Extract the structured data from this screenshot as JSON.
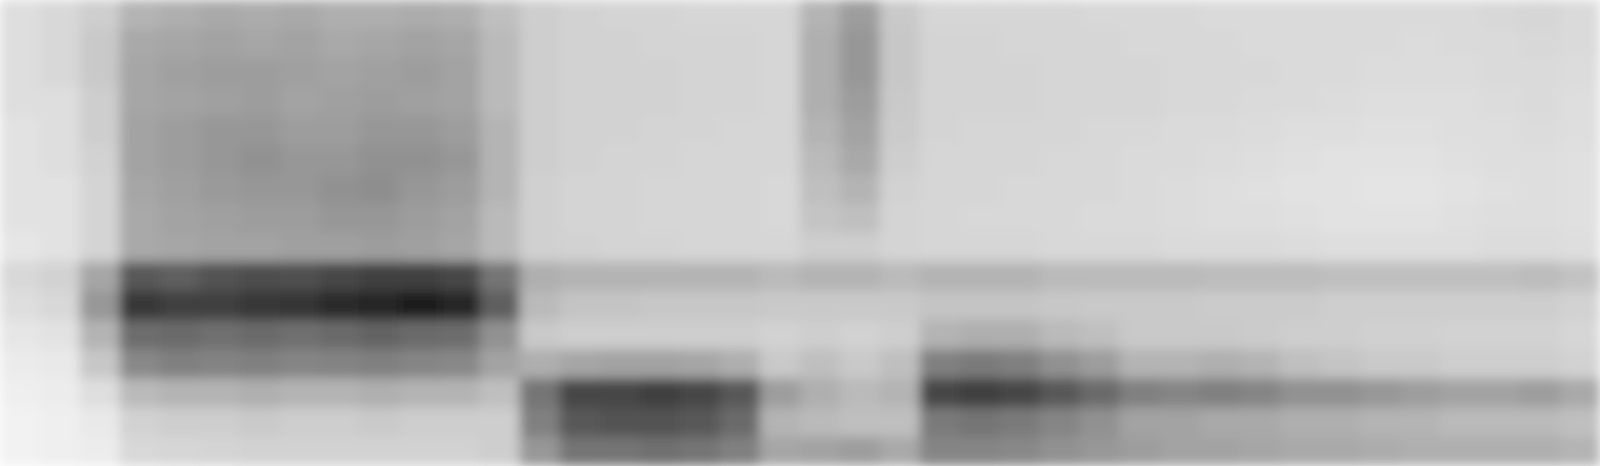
{
  "chart_data": {
    "type": "heatmap",
    "tick_labels": false,
    "zlim": [
      0,
      1
    ],
    "cells": [
      [
        0.22,
        0.22,
        0.22,
        0.22,
        0.2,
        0.2,
        0.2,
        0.2,
        0.18,
        0.25,
        0.22,
        0.18,
        0.15,
        0.12,
        0.1,
        0.1
      ],
      [
        0.25,
        0.25,
        0.25,
        0.22,
        0.22,
        0.22,
        0.2,
        0.2,
        0.2,
        0.28,
        0.25,
        0.2,
        0.16,
        0.14,
        0.12,
        0.12
      ],
      [
        0.3,
        0.32,
        0.32,
        0.3,
        0.3,
        0.28,
        0.27,
        0.27,
        0.27,
        0.45,
        0.5,
        0.4,
        0.33,
        0.22,
        0.16,
        0.14
      ],
      [
        0.4,
        0.44,
        0.45,
        0.45,
        0.46,
        0.46,
        0.45,
        0.44,
        0.44,
        0.72,
        0.82,
        0.65,
        0.55,
        0.38,
        0.28,
        0.25
      ],
      [
        0.42,
        0.45,
        0.47,
        0.46,
        0.48,
        0.48,
        0.47,
        0.46,
        0.45,
        0.7,
        0.8,
        0.66,
        0.58,
        0.4,
        0.3,
        0.26
      ],
      [
        0.44,
        0.46,
        0.48,
        0.47,
        0.5,
        0.5,
        0.49,
        0.47,
        0.46,
        0.74,
        0.8,
        0.64,
        0.57,
        0.4,
        0.3,
        0.27
      ],
      [
        0.43,
        0.45,
        0.48,
        0.48,
        0.5,
        0.52,
        0.5,
        0.48,
        0.46,
        0.76,
        0.82,
        0.66,
        0.58,
        0.42,
        0.32,
        0.28
      ],
      [
        0.44,
        0.46,
        0.47,
        0.46,
        0.48,
        0.5,
        0.5,
        0.48,
        0.47,
        0.75,
        0.83,
        0.64,
        0.56,
        0.4,
        0.3,
        0.28
      ],
      [
        0.42,
        0.44,
        0.46,
        0.47,
        0.48,
        0.5,
        0.52,
        0.5,
        0.47,
        0.78,
        0.86,
        0.66,
        0.57,
        0.4,
        0.3,
        0.28
      ],
      [
        0.42,
        0.45,
        0.47,
        0.48,
        0.5,
        0.52,
        0.53,
        0.5,
        0.48,
        0.8,
        0.88,
        0.68,
        0.58,
        0.42,
        0.32,
        0.28
      ],
      [
        0.43,
        0.46,
        0.48,
        0.47,
        0.5,
        0.52,
        0.5,
        0.48,
        0.47,
        0.8,
        0.9,
        0.66,
        0.56,
        0.4,
        0.3,
        0.28
      ],
      [
        0.42,
        0.45,
        0.46,
        0.46,
        0.48,
        0.5,
        0.48,
        0.46,
        0.45,
        0.78,
        0.88,
        0.65,
        0.55,
        0.4,
        0.3,
        0.28
      ],
      [
        0.36,
        0.38,
        0.38,
        0.38,
        0.4,
        0.4,
        0.4,
        0.38,
        0.38,
        0.62,
        0.7,
        0.52,
        0.46,
        0.36,
        0.3,
        0.3
      ],
      [
        0.3,
        0.3,
        0.3,
        0.3,
        0.3,
        0.3,
        0.29,
        0.29,
        0.29,
        0.42,
        0.38,
        0.32,
        0.42,
        0.62,
        0.58,
        0.5
      ],
      [
        0.28,
        0.28,
        0.28,
        0.28,
        0.28,
        0.28,
        0.27,
        0.27,
        0.28,
        0.4,
        0.34,
        0.3,
        0.45,
        0.78,
        0.72,
        0.62
      ],
      [
        0.27,
        0.28,
        0.28,
        0.28,
        0.28,
        0.27,
        0.27,
        0.27,
        0.27,
        0.4,
        0.34,
        0.3,
        0.46,
        0.78,
        0.74,
        0.62
      ],
      [
        0.27,
        0.27,
        0.28,
        0.28,
        0.27,
        0.27,
        0.26,
        0.26,
        0.27,
        0.4,
        0.33,
        0.3,
        0.46,
        0.8,
        0.74,
        0.64
      ],
      [
        0.26,
        0.27,
        0.27,
        0.27,
        0.27,
        0.26,
        0.26,
        0.26,
        0.26,
        0.4,
        0.33,
        0.3,
        0.45,
        0.78,
        0.72,
        0.62
      ],
      [
        0.26,
        0.27,
        0.27,
        0.27,
        0.26,
        0.26,
        0.26,
        0.26,
        0.26,
        0.4,
        0.33,
        0.3,
        0.42,
        0.72,
        0.66,
        0.58
      ],
      [
        0.26,
        0.26,
        0.26,
        0.26,
        0.26,
        0.26,
        0.25,
        0.25,
        0.26,
        0.38,
        0.32,
        0.28,
        0.32,
        0.48,
        0.4,
        0.45
      ],
      [
        0.4,
        0.42,
        0.42,
        0.42,
        0.4,
        0.38,
        0.36,
        0.34,
        0.3,
        0.4,
        0.32,
        0.3,
        0.36,
        0.42,
        0.38,
        0.46
      ],
      [
        0.48,
        0.5,
        0.5,
        0.48,
        0.46,
        0.44,
        0.4,
        0.36,
        0.3,
        0.4,
        0.32,
        0.28,
        0.32,
        0.38,
        0.36,
        0.48
      ],
      [
        0.32,
        0.33,
        0.33,
        0.32,
        0.31,
        0.3,
        0.28,
        0.27,
        0.27,
        0.38,
        0.32,
        0.3,
        0.36,
        0.4,
        0.36,
        0.44
      ],
      [
        0.26,
        0.27,
        0.27,
        0.27,
        0.27,
        0.26,
        0.26,
        0.26,
        0.26,
        0.4,
        0.34,
        0.4,
        0.58,
        0.78,
        0.6,
        0.56
      ],
      [
        0.26,
        0.27,
        0.27,
        0.27,
        0.26,
        0.26,
        0.26,
        0.25,
        0.26,
        0.4,
        0.34,
        0.42,
        0.6,
        0.8,
        0.62,
        0.56
      ],
      [
        0.26,
        0.26,
        0.27,
        0.27,
        0.26,
        0.26,
        0.25,
        0.25,
        0.26,
        0.4,
        0.34,
        0.42,
        0.58,
        0.78,
        0.6,
        0.55
      ],
      [
        0.26,
        0.26,
        0.26,
        0.26,
        0.26,
        0.25,
        0.25,
        0.25,
        0.25,
        0.38,
        0.33,
        0.38,
        0.52,
        0.72,
        0.56,
        0.52
      ],
      [
        0.25,
        0.26,
        0.26,
        0.26,
        0.25,
        0.25,
        0.25,
        0.24,
        0.25,
        0.38,
        0.32,
        0.36,
        0.48,
        0.66,
        0.52,
        0.5
      ],
      [
        0.25,
        0.25,
        0.26,
        0.26,
        0.25,
        0.24,
        0.24,
        0.24,
        0.25,
        0.38,
        0.32,
        0.32,
        0.4,
        0.58,
        0.46,
        0.48
      ],
      [
        0.25,
        0.25,
        0.25,
        0.25,
        0.24,
        0.24,
        0.23,
        0.23,
        0.24,
        0.38,
        0.32,
        0.32,
        0.4,
        0.56,
        0.46,
        0.46
      ],
      [
        0.24,
        0.25,
        0.25,
        0.25,
        0.24,
        0.23,
        0.22,
        0.22,
        0.24,
        0.37,
        0.31,
        0.32,
        0.42,
        0.58,
        0.44,
        0.46
      ],
      [
        0.24,
        0.24,
        0.25,
        0.24,
        0.23,
        0.22,
        0.21,
        0.22,
        0.24,
        0.37,
        0.31,
        0.31,
        0.4,
        0.56,
        0.44,
        0.45
      ],
      [
        0.24,
        0.24,
        0.24,
        0.24,
        0.22,
        0.21,
        0.2,
        0.21,
        0.23,
        0.37,
        0.31,
        0.3,
        0.36,
        0.52,
        0.42,
        0.44
      ],
      [
        0.24,
        0.24,
        0.24,
        0.23,
        0.22,
        0.2,
        0.2,
        0.2,
        0.22,
        0.36,
        0.3,
        0.3,
        0.34,
        0.52,
        0.42,
        0.44
      ],
      [
        0.24,
        0.24,
        0.23,
        0.22,
        0.21,
        0.2,
        0.19,
        0.2,
        0.22,
        0.36,
        0.3,
        0.29,
        0.32,
        0.5,
        0.4,
        0.43
      ],
      [
        0.24,
        0.23,
        0.23,
        0.22,
        0.21,
        0.2,
        0.19,
        0.2,
        0.22,
        0.36,
        0.3,
        0.29,
        0.32,
        0.48,
        0.4,
        0.42
      ],
      [
        0.24,
        0.24,
        0.23,
        0.22,
        0.22,
        0.21,
        0.2,
        0.21,
        0.22,
        0.36,
        0.3,
        0.28,
        0.3,
        0.46,
        0.38,
        0.42
      ],
      [
        0.25,
        0.24,
        0.24,
        0.23,
        0.22,
        0.22,
        0.21,
        0.22,
        0.23,
        0.36,
        0.3,
        0.28,
        0.3,
        0.46,
        0.38,
        0.42
      ],
      [
        0.26,
        0.25,
        0.24,
        0.24,
        0.23,
        0.22,
        0.22,
        0.22,
        0.23,
        0.37,
        0.3,
        0.28,
        0.3,
        0.48,
        0.38,
        0.42
      ],
      [
        0.24,
        0.24,
        0.23,
        0.22,
        0.22,
        0.21,
        0.21,
        0.21,
        0.22,
        0.35,
        0.28,
        0.26,
        0.28,
        0.44,
        0.36,
        0.4
      ]
    ]
  }
}
